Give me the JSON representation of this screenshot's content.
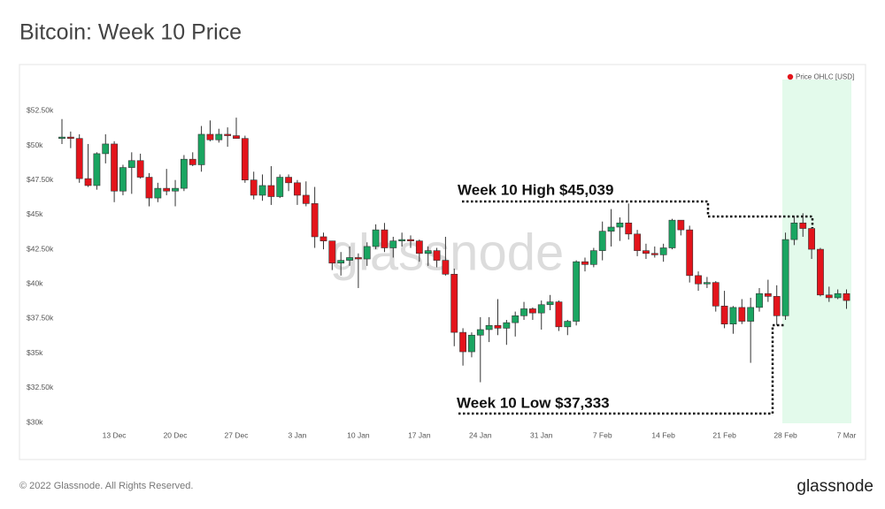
{
  "title": "Bitcoin: Week 10 Price",
  "footer": "© 2022 Glassnode. All Rights Reserved.",
  "logo": "glassnode",
  "chart_data": {
    "type": "candlestick",
    "watermark": "glassnode",
    "annotations": [
      "Week 10 High $45,039",
      "Week 10 Low $37,333"
    ],
    "categories": [
      null,
      null,
      null,
      null,
      null,
      null,
      "13 Dec",
      null,
      null,
      null,
      null,
      null,
      null,
      "20 Dec",
      null,
      null,
      null,
      null,
      null,
      null,
      "27 Dec",
      null,
      null,
      null,
      null,
      null,
      null,
      "3 Jan",
      null,
      null,
      null,
      null,
      null,
      null,
      "10 Jan",
      null,
      null,
      null,
      null,
      null,
      null,
      "17 Jan",
      null,
      null,
      null,
      null,
      null,
      null,
      "24 Jan",
      null,
      null,
      null,
      null,
      null,
      null,
      "31 Jan",
      null,
      null,
      null,
      null,
      null,
      null,
      "7 Feb",
      null,
      null,
      null,
      null,
      null,
      null,
      "14 Feb",
      null,
      null,
      null,
      null,
      null,
      null,
      "21 Feb",
      null,
      null,
      null,
      null,
      null,
      null,
      "28 Feb",
      null,
      null,
      null,
      null,
      null,
      null,
      "7 Mar"
    ],
    "series": [
      {
        "name": "Price OHLC [USD]",
        "color": "#e3141b",
        "up_color": "#1aa561",
        "down_color": "#e3141b",
        "open": [
          50500,
          50600,
          50500,
          47600,
          47100,
          49400,
          50100,
          46700,
          48400,
          48900,
          47700,
          46200,
          46900,
          46700,
          46900,
          49000,
          48600,
          50800,
          50400,
          50800,
          50700,
          50500,
          47500,
          46400,
          47100,
          46300,
          47700,
          47300,
          46400,
          45800,
          43400,
          43100,
          41500,
          41700,
          41900,
          41800,
          42700,
          43900,
          42600,
          43100,
          43200,
          43100,
          42200,
          42400,
          41700,
          40700,
          36500,
          35100,
          36300,
          36700,
          37000,
          36800,
          37200,
          37700,
          38200,
          37900,
          38500,
          38700,
          36900,
          37300,
          41600,
          41400,
          42400,
          43800,
          44100,
          44400,
          43600,
          42400,
          42200,
          42100,
          42600,
          44600,
          43900,
          40600,
          40000,
          40100,
          38400,
          37100,
          38300,
          37300,
          38300,
          39300,
          39100,
          37700,
          43200,
          44400,
          44000,
          42500,
          39200,
          39000,
          39300
        ],
        "high": [
          51900,
          51000,
          50800,
          50100,
          49500,
          50800,
          50300,
          48600,
          49500,
          49400,
          48000,
          47300,
          48300,
          47500,
          49300,
          49500,
          51400,
          51800,
          51200,
          51300,
          52000,
          50700,
          48100,
          47900,
          48500,
          47900,
          47900,
          47500,
          47400,
          47000,
          43700,
          43100,
          42300,
          42700,
          42200,
          43000,
          44300,
          44400,
          43400,
          43700,
          43500,
          43200,
          42700,
          42600,
          43400,
          41100,
          36800,
          36500,
          37600,
          37600,
          38900,
          37400,
          38000,
          38700,
          38300,
          38800,
          39200,
          38800,
          37400,
          41700,
          41900,
          42600,
          44500,
          45400,
          44800,
          45800,
          43900,
          42900,
          42700,
          42900,
          44700,
          44600,
          44200,
          40900,
          40500,
          40200,
          39500,
          38400,
          38900,
          39000,
          39700,
          40300,
          39900,
          43700,
          44900,
          45100,
          44100,
          42600,
          39800,
          39600,
          39600
        ],
        "low": [
          50100,
          49800,
          47300,
          47000,
          46800,
          48700,
          45900,
          46400,
          46500,
          47600,
          45600,
          45900,
          46400,
          45600,
          46700,
          48500,
          48100,
          50300,
          50200,
          49900,
          50500,
          47300,
          46100,
          46000,
          45700,
          46200,
          46700,
          45700,
          45600,
          42600,
          42500,
          41000,
          40600,
          41300,
          39700,
          41300,
          42500,
          42300,
          41900,
          42700,
          42600,
          41600,
          41300,
          41200,
          40600,
          35500,
          34100,
          34700,
          32900,
          35800,
          36300,
          35600,
          36200,
          37400,
          37400,
          36700,
          38100,
          36600,
          36300,
          37000,
          40900,
          41200,
          41700,
          42700,
          43100,
          43200,
          42000,
          41800,
          41900,
          41600,
          42500,
          43500,
          40100,
          39500,
          39700,
          38000,
          36800,
          36400,
          37100,
          34300,
          38000,
          38700,
          37000,
          37400,
          42800,
          43400,
          41800,
          39100,
          38700,
          38900,
          38200
        ],
        "close": [
          50600,
          50500,
          47600,
          47100,
          49400,
          50100,
          46700,
          48400,
          48900,
          47700,
          46200,
          46900,
          46700,
          46900,
          49000,
          48600,
          50800,
          50400,
          50800,
          50700,
          50500,
          47500,
          46400,
          47100,
          46300,
          47700,
          47300,
          46400,
          45800,
          43400,
          43100,
          41500,
          41700,
          41900,
          41800,
          42700,
          43900,
          42600,
          43100,
          43200,
          43100,
          42200,
          42400,
          41700,
          40700,
          36500,
          35100,
          36300,
          36700,
          37000,
          36800,
          37200,
          37700,
          38200,
          37900,
          38500,
          38700,
          36900,
          37300,
          41600,
          41400,
          42400,
          43800,
          44100,
          44400,
          43600,
          42400,
          42200,
          42100,
          42600,
          44600,
          43900,
          40600,
          40000,
          40100,
          38400,
          37100,
          38300,
          37300,
          38300,
          39300,
          39100,
          37700,
          43200,
          44400,
          44000,
          42500,
          39200,
          39000,
          39300,
          38800
        ]
      }
    ],
    "ylim": [
      30000,
      55200
    ],
    "yticks": [
      {
        "value": 30000,
        "label": "$30k"
      },
      {
        "value": 32500,
        "label": "$32.50k"
      },
      {
        "value": 35000,
        "label": "$35k"
      },
      {
        "value": 37500,
        "label": "$37.50k"
      },
      {
        "value": 40000,
        "label": "$40k"
      },
      {
        "value": 42500,
        "label": "$42.50k"
      },
      {
        "value": 45000,
        "label": "$45k"
      },
      {
        "value": 47500,
        "label": "$47.50k"
      },
      {
        "value": 50000,
        "label": "$50k"
      },
      {
        "value": 52500,
        "label": "$52.50k"
      }
    ],
    "grid": false
  }
}
